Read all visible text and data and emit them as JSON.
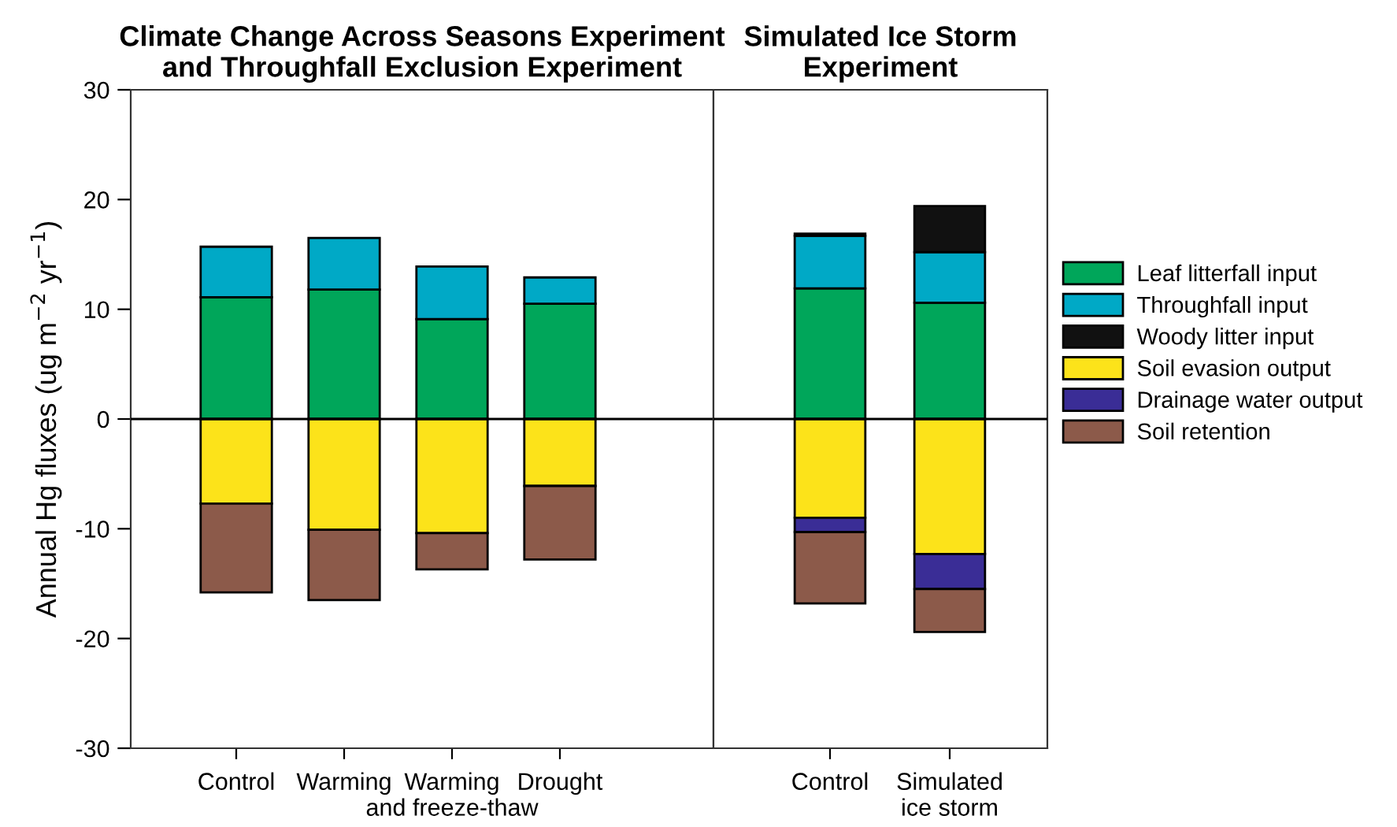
{
  "chart_data": [
    {
      "type": "bar",
      "stacked": true,
      "title": "Climate Change Across Seasons Experiment\nand Throughfall Exclusion Experiment",
      "ylabel": "Annual Hg fluxes (ug m$^{−2}$ yr$^{−1}$)",
      "categories": [
        "Control",
        "Warming",
        "Warming\nand freeze-thaw",
        "Drought"
      ],
      "series": [
        {
          "color": "#00a65a",
          "values": [
            11.1,
            11.8,
            9.1,
            10.5
          ]
        },
        {
          "color": "#00a9c6",
          "values": [
            4.6,
            4.7,
            4.8,
            2.4
          ]
        },
        {
          "color": "#fce31a",
          "values": [
            -7.7,
            -10.1,
            -10.4,
            -6.1
          ]
        },
        {
          "color": "#8c5a4a",
          "values": [
            -8.1,
            -6.4,
            -3.3,
            -6.7
          ]
        }
      ],
      "ylim": [
        -30,
        30
      ],
      "yticks": [
        -30,
        -20,
        -10,
        0,
        10,
        20,
        30
      ],
      "grid": false,
      "legend": false,
      "ref_lines": [
        {
          "axis": "y",
          "value": 0,
          "color": "#000000"
        }
      ]
    },
    {
      "type": "bar",
      "stacked": true,
      "title": "Simulated Ice Storm\nExperiment",
      "categories": [
        "Control",
        "Simulated\nice storm"
      ],
      "series": [
        {
          "name": "Leaf litterfall input",
          "color": "#00a65a",
          "values": [
            11.9,
            10.6
          ]
        },
        {
          "name": "Throughfall input",
          "color": "#00a9c6",
          "values": [
            4.8,
            4.6
          ]
        },
        {
          "name": "Woody litter input",
          "color": "#111111",
          "values": [
            0.2,
            4.2
          ]
        },
        {
          "name": "Soil evasion output",
          "color": "#fce31a",
          "values": [
            -9.0,
            -12.3
          ]
        },
        {
          "name": "Drainage water output",
          "color": "#3a2d96",
          "values": [
            -1.3,
            -3.2
          ]
        },
        {
          "name": "Soil retention",
          "color": "#8c5a4a",
          "values": [
            -6.5,
            -3.9
          ]
        }
      ],
      "ylim": [
        -30,
        30
      ],
      "yticks": [
        -30,
        -20,
        -10,
        0,
        10,
        20,
        30
      ],
      "grid": false,
      "legend": "right",
      "tick_labels": "x",
      "ref_lines": [
        {
          "axis": "y",
          "value": 0,
          "color": "#000000"
        }
      ]
    }
  ]
}
